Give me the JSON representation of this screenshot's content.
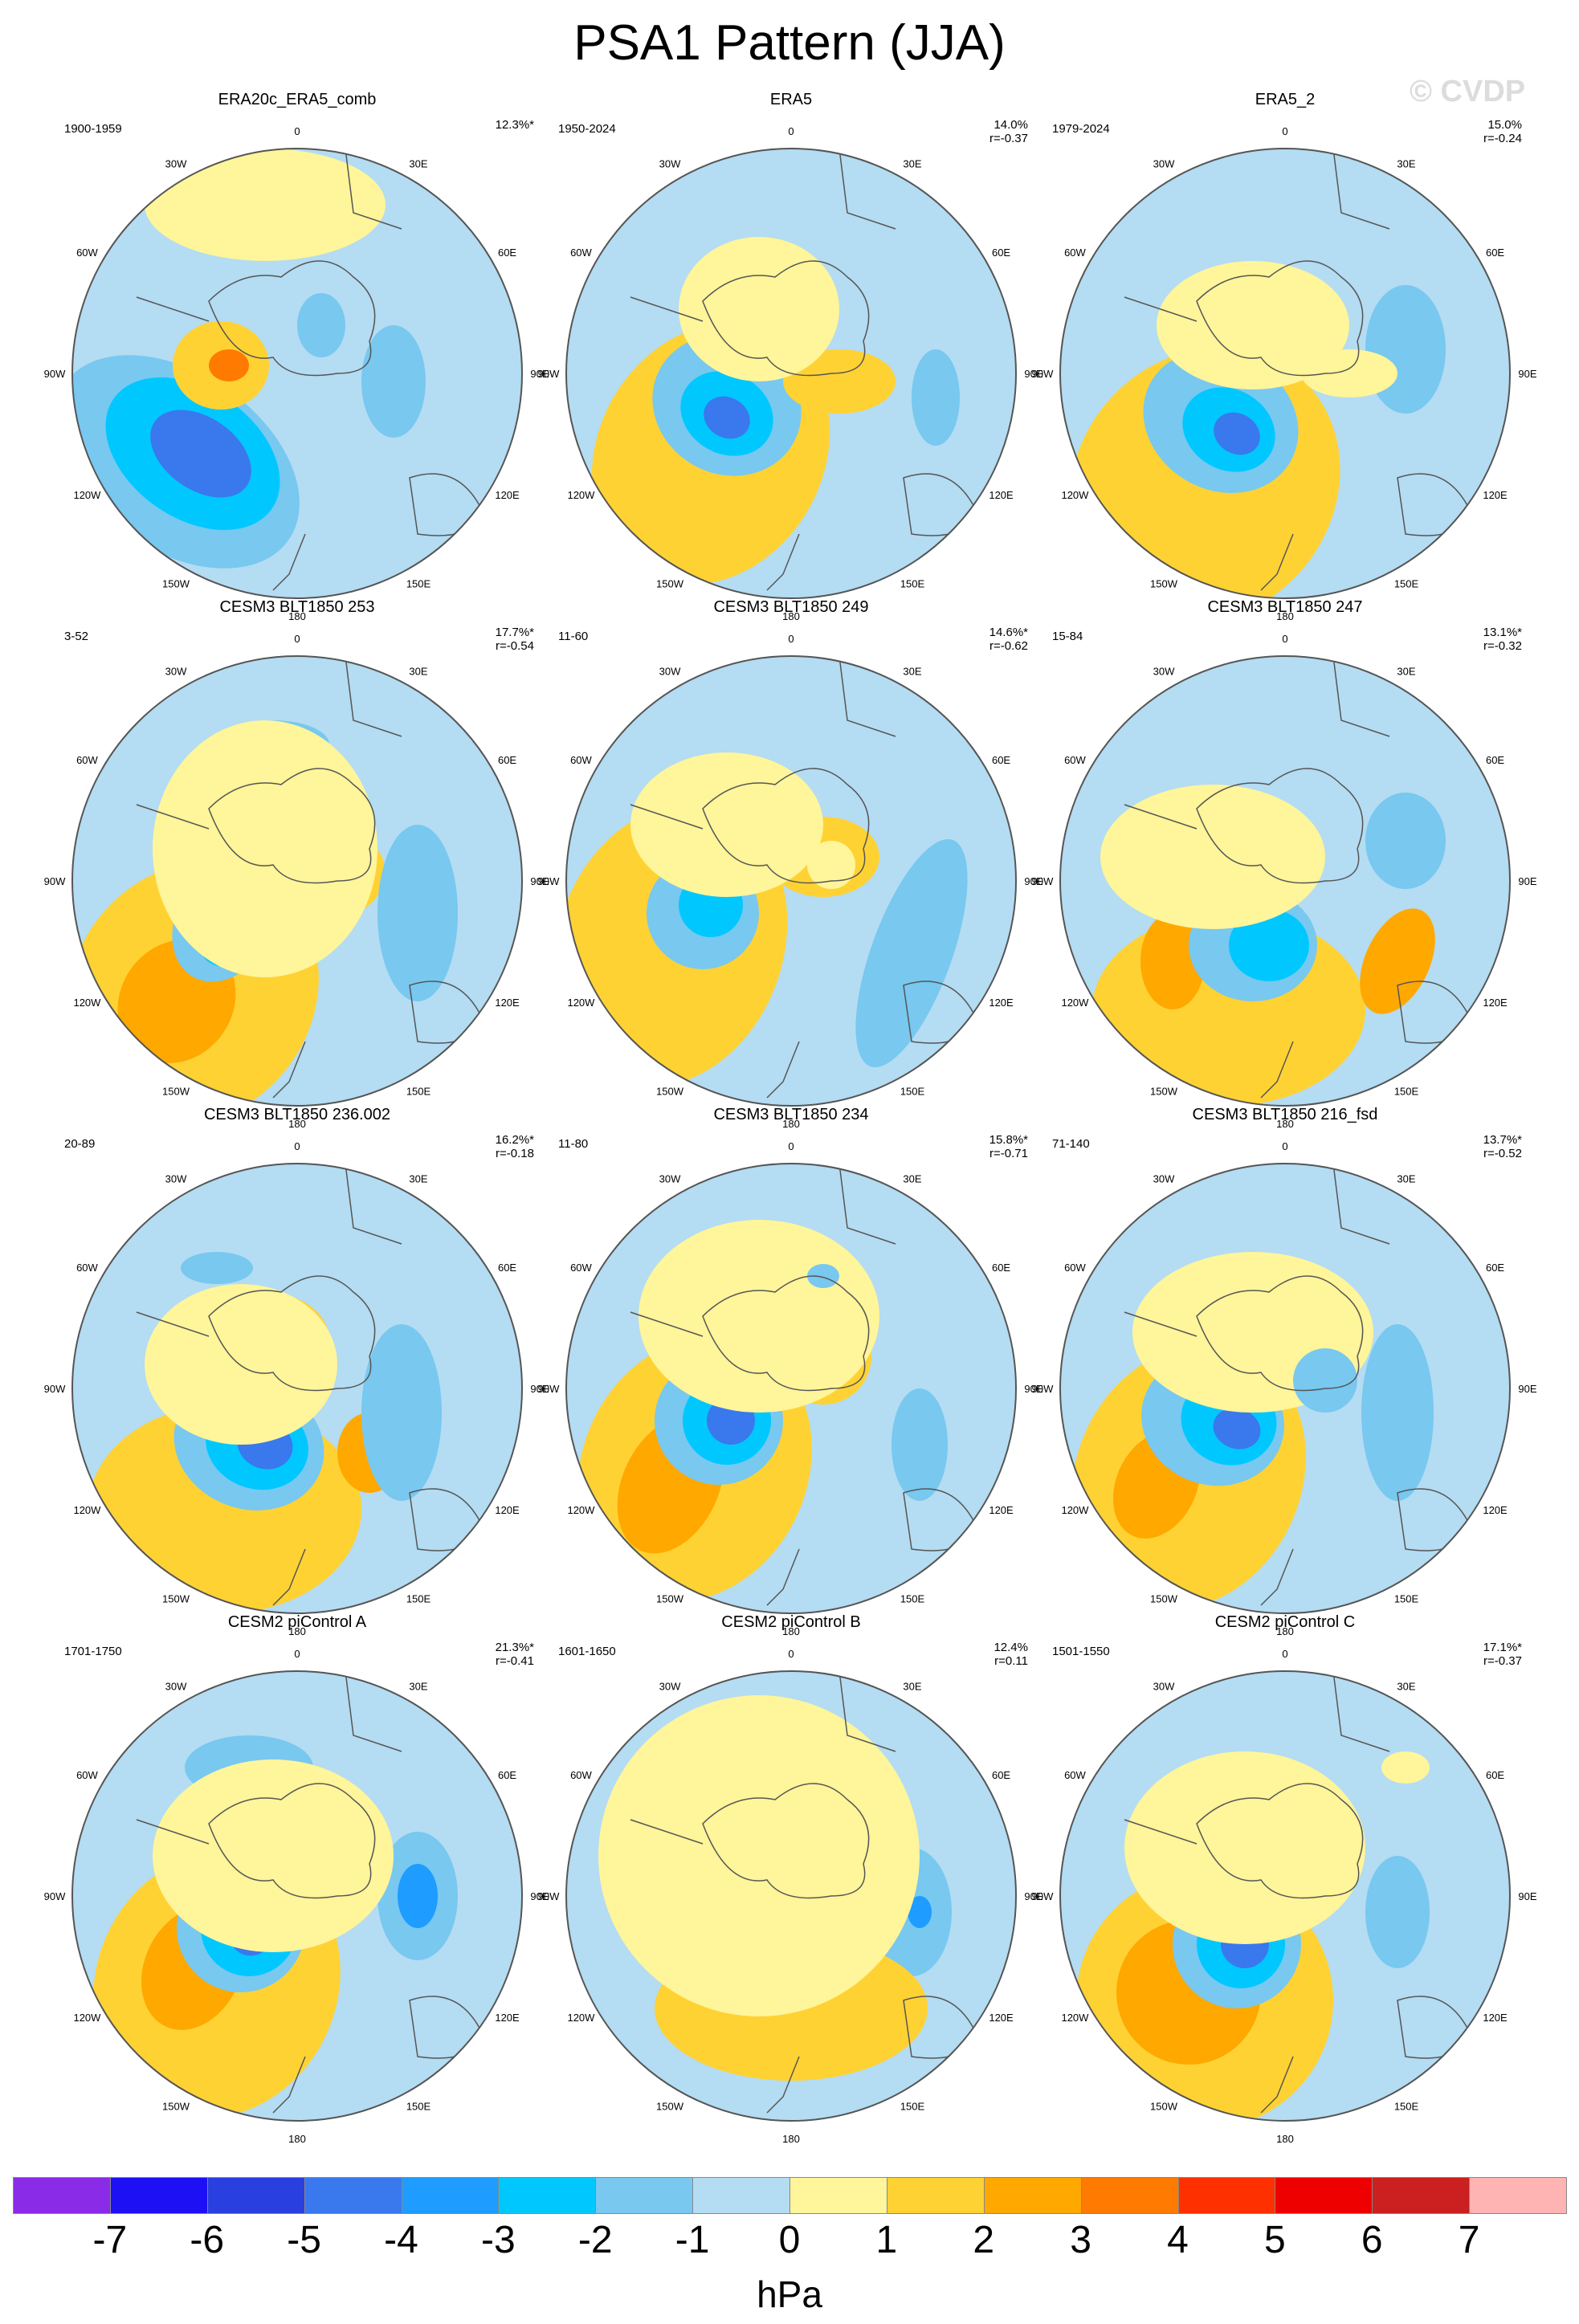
{
  "title": "PSA1 Pattern (JJA)",
  "watermark": "© CVDP",
  "lon_labels": [
    "0",
    "30E",
    "60E",
    "90E",
    "120E",
    "150E",
    "180",
    "150W",
    "120W",
    "90W",
    "60W",
    "30W"
  ],
  "panels": [
    {
      "name": "ERA20c_ERA5_comb",
      "years": "1900-1959",
      "pct": "12.3%*",
      "r": "",
      "variant": 0
    },
    {
      "name": "ERA5",
      "years": "1950-2024",
      "pct": "14.0%",
      "r": "r=-0.37",
      "variant": 1
    },
    {
      "name": "ERA5_2",
      "years": "1979-2024",
      "pct": "15.0%",
      "r": "r=-0.24",
      "variant": 2
    },
    {
      "name": "CESM3 BLT1850 253",
      "years": "3-52",
      "pct": "17.7%*",
      "r": "r=-0.54",
      "variant": 3
    },
    {
      "name": "CESM3 BLT1850 249",
      "years": "11-60",
      "pct": "14.6%*",
      "r": "r=-0.62",
      "variant": 4
    },
    {
      "name": "CESM3 BLT1850 247",
      "years": "15-84",
      "pct": "13.1%*",
      "r": "r=-0.32",
      "variant": 5
    },
    {
      "name": "CESM3 BLT1850 236.002",
      "years": "20-89",
      "pct": "16.2%*",
      "r": "r=-0.18",
      "variant": 6
    },
    {
      "name": "CESM3 BLT1850 234",
      "years": "11-80",
      "pct": "15.8%*",
      "r": "r=-0.71",
      "variant": 7
    },
    {
      "name": "CESM3 BLT1850 216_fsd",
      "years": "71-140",
      "pct": "13.7%*",
      "r": "r=-0.52",
      "variant": 8
    },
    {
      "name": "CESM2 piControl A",
      "years": "1701-1750",
      "pct": "21.3%*",
      "r": "r=-0.41",
      "variant": 9
    },
    {
      "name": "CESM2 piControl B",
      "years": "1601-1650",
      "pct": "12.4%",
      "r": "r=0.11",
      "variant": 10
    },
    {
      "name": "CESM2 piControl C",
      "years": "1501-1550",
      "pct": "17.1%*",
      "r": "r=-0.37",
      "variant": 11
    }
  ],
  "colorbar": {
    "units": "hPa",
    "labels": [
      "-7",
      "-6",
      "-5",
      "-4",
      "-3",
      "-2",
      "-1",
      "0",
      "1",
      "2",
      "3",
      "4",
      "5",
      "6",
      "7"
    ],
    "colors": [
      "#8a2be8",
      "#1e10f5",
      "#2a3fe0",
      "#3a78ee",
      "#1f9cff",
      "#00c8ff",
      "#78c8f0",
      "#b4dcf2",
      "#fff59a",
      "#ffd234",
      "#ffa800",
      "#ff7a00",
      "#ff3000",
      "#ee0000",
      "#cc1f1f",
      "#ffb4b4"
    ]
  },
  "map_palette": {
    "ocean_neg": "#b4dcf2",
    "pos1": "#fff59a",
    "pos2": "#ffd234",
    "pos3": "#ffa800",
    "pos4": "#ff7a00",
    "neg2": "#78c8f0",
    "neg3": "#00c8ff",
    "neg4": "#1f9cff",
    "neg5": "#3a78ee"
  }
}
